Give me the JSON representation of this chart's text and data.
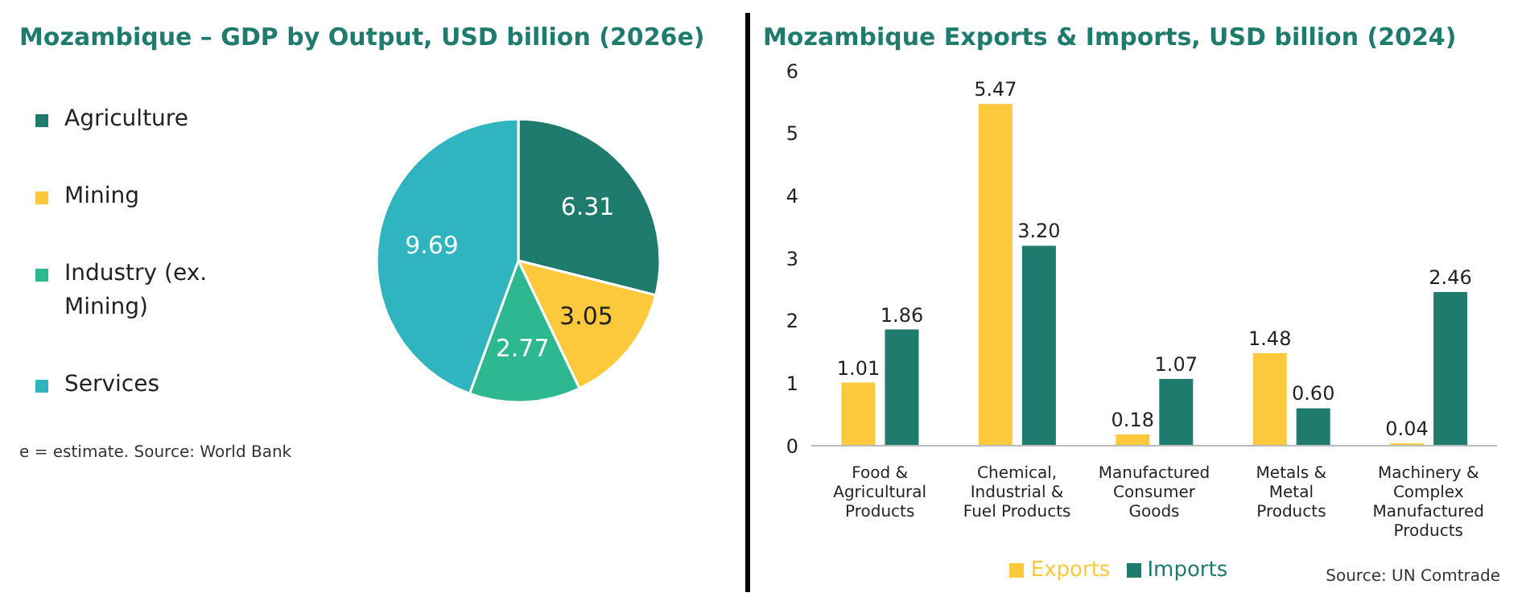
{
  "chart_data": [
    {
      "type": "pie",
      "title": "Mozambique – GDP by Output, USD billion (2026e)",
      "categories": [
        "Agriculture",
        "Mining",
        "Industry (ex. Mining)",
        "Services"
      ],
      "values": [
        6.31,
        3.05,
        2.77,
        9.69
      ],
      "colors": [
        "#1e7b6e",
        "#fcc93d",
        "#2db892",
        "#2fb4c0"
      ],
      "legend": "left",
      "data_labels": true,
      "annotations": [
        "e = estimate. Source: World Bank"
      ]
    },
    {
      "type": "bar",
      "title": "Mozambique Exports & Imports, USD billion (2024)",
      "categories": [
        "Food & Agricultural Products",
        "Chemical, Industrial & Fuel Products",
        "Manufactured Consumer Goods",
        "Metals & Metal Products",
        "Machinery & Complex Manufactured Products"
      ],
      "series": [
        {
          "name": "Exports",
          "color": "#fcc93d",
          "values": [
            1.01,
            5.47,
            0.18,
            1.48,
            0.04
          ],
          "value_labels": [
            "1.01",
            "5.47",
            "0.18",
            "1.48",
            "0.04"
          ]
        },
        {
          "name": "Imports",
          "color": "#1e7b6e",
          "values": [
            1.86,
            3.2,
            1.07,
            0.6,
            2.46
          ],
          "value_labels": [
            "1.86",
            "3.20",
            "1.07",
            "0.60",
            "2.46"
          ]
        }
      ],
      "ylim": [
        0,
        6
      ],
      "yticks": [
        0,
        1,
        2,
        3,
        4,
        5,
        6
      ],
      "data_labels": true,
      "legend": "bottom",
      "annotations": [
        "Source: UN Comtrade"
      ]
    }
  ]
}
